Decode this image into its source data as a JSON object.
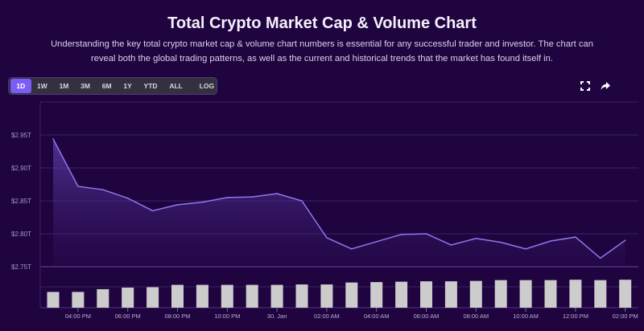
{
  "header": {
    "title": "Total Crypto Market Cap & Volume Chart",
    "subtitle": "Understanding the key total crypto market cap & volume chart numbers is essential for any successful trader and investor. The chart can reveal both the global trading patterns, as well as the current and historical trends that the market has found itself in."
  },
  "toolbar": {
    "ranges": [
      "1D",
      "1W",
      "1M",
      "3M",
      "6M",
      "1Y",
      "YTD",
      "ALL"
    ],
    "active_range": "1D",
    "log_label": "LOG",
    "fullscreen_icon": "fullscreen-icon",
    "share_icon": "share-icon"
  },
  "colors": {
    "background": "#200440",
    "line": "#8f78ee",
    "active_button": "#7b5cf5",
    "volume_bar": "#cccccc"
  },
  "chart_data": [
    {
      "type": "area",
      "title": "",
      "ylabel": "",
      "yticks": [
        "$2.75T",
        "$2.80T",
        "$2.85T",
        "$2.90T",
        "$2.95T"
      ],
      "ylim": [
        2.75,
        3.0
      ],
      "grid": true,
      "x": [
        "15:00",
        "16:00",
        "17:00",
        "18:00",
        "19:00",
        "20:00",
        "21:00",
        "22:00",
        "23:00",
        "00:00",
        "01:00",
        "02:00",
        "03:00",
        "04:00",
        "05:00",
        "06:00",
        "07:00",
        "08:00",
        "09:00",
        "10:00",
        "11:00",
        "12:00",
        "13:00",
        "14:00"
      ],
      "series": [
        {
          "values": [
            2.944,
            2.872,
            2.867,
            2.854,
            2.835,
            2.844,
            2.848,
            2.855,
            2.856,
            2.861,
            2.85,
            2.794,
            2.777,
            2.788,
            2.799,
            2.8,
            2.783,
            2.793,
            2.787,
            2.777,
            2.789,
            2.795,
            2.763,
            2.79
          ],
          "unit": "T USD"
        }
      ]
    },
    {
      "type": "bar",
      "title": "",
      "xticks": [
        "04:00 PM",
        "06:00 PM",
        "08:00 PM",
        "10:00 PM",
        "30. Jan",
        "02:00 AM",
        "04:00 AM",
        "06:00 AM",
        "08:00 AM",
        "10:00 AM",
        "12:00 PM",
        "02:00 PM"
      ],
      "categories": [
        "15:00",
        "16:00",
        "17:00",
        "18:00",
        "19:00",
        "20:00",
        "21:00",
        "22:00",
        "23:00",
        "00:00",
        "01:00",
        "02:00",
        "03:00",
        "04:00",
        "05:00",
        "06:00",
        "07:00",
        "08:00",
        "09:00",
        "10:00",
        "11:00",
        "12:00",
        "13:00",
        "14:00"
      ],
      "values": [
        20,
        20,
        23.5,
        25.5,
        26,
        29,
        29,
        29,
        29,
        29,
        29.5,
        29.5,
        32,
        32.5,
        33,
        33.5,
        33.5,
        34,
        35,
        35,
        35,
        35.5,
        35,
        35.5
      ],
      "ylim": [
        0,
        52
      ],
      "grid": true
    }
  ]
}
